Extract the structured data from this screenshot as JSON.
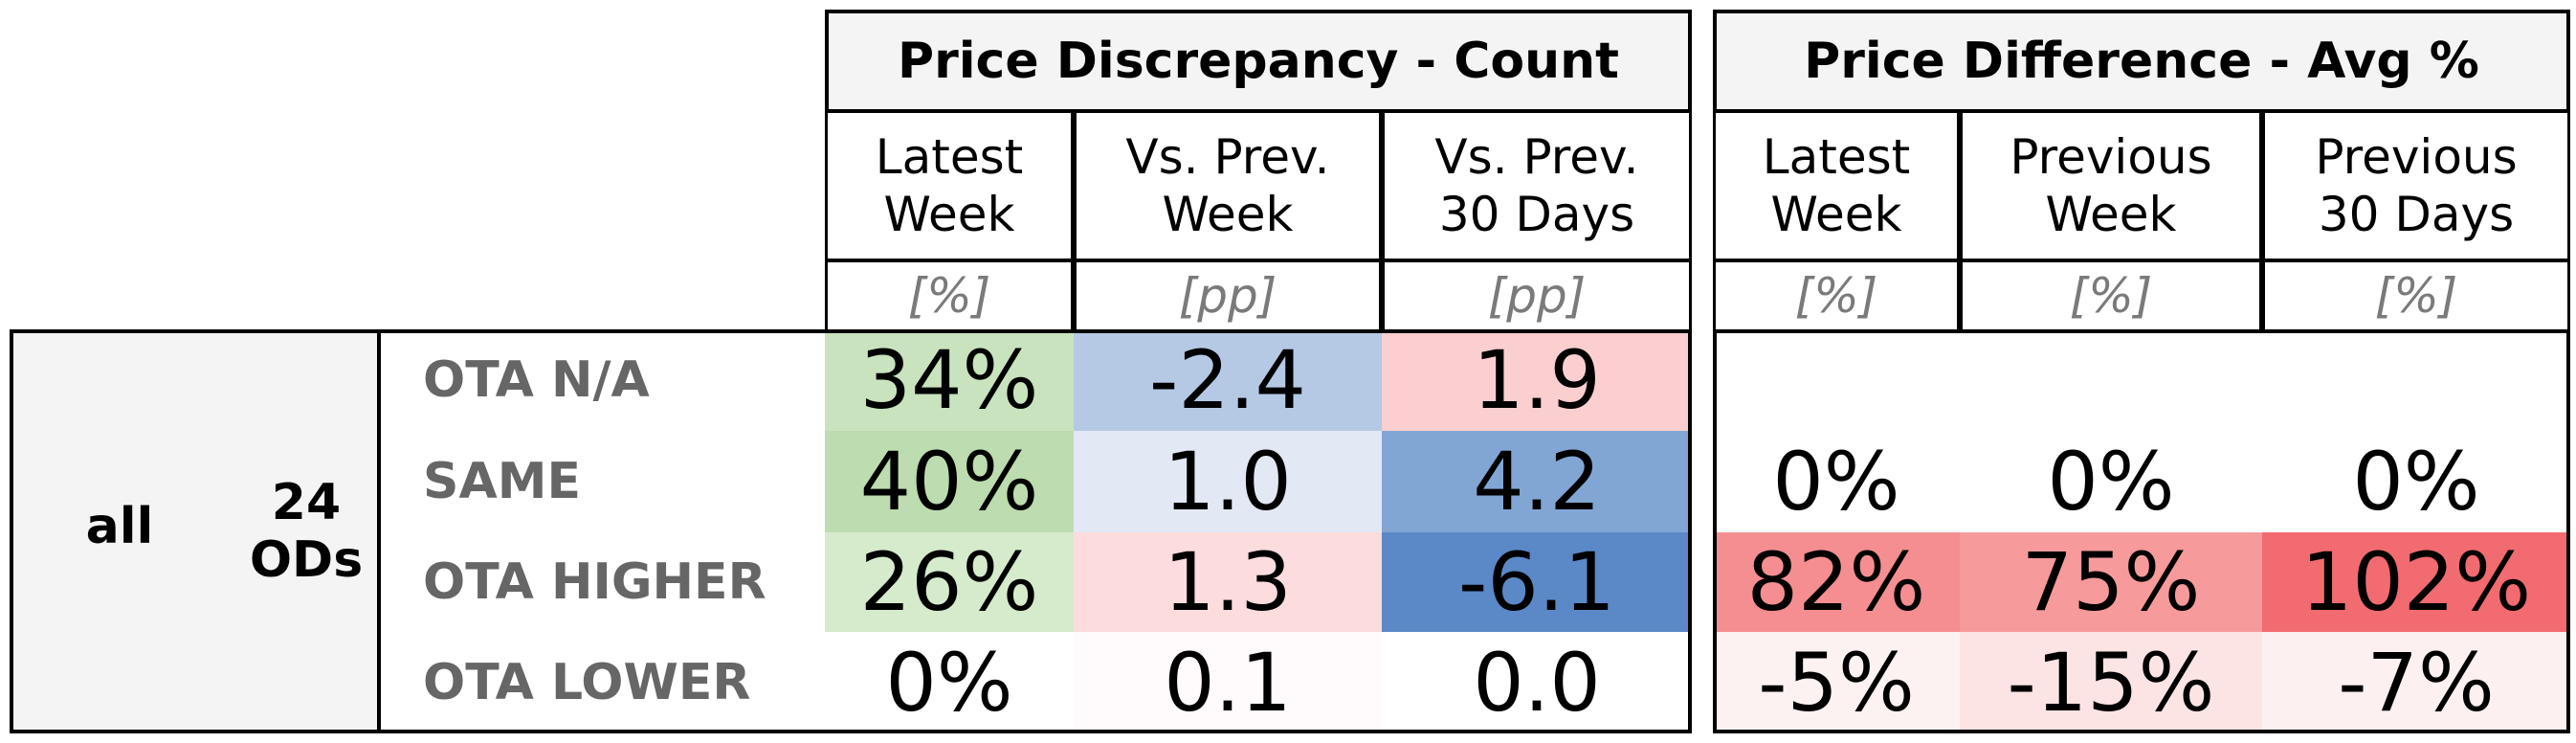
{
  "groups": {
    "count": {
      "title": "Price Discrepancy - Count",
      "columns": [
        {
          "label": "Latest\nWeek",
          "unit": "[%]"
        },
        {
          "label": "Vs. Prev.\nWeek",
          "unit": "[pp]"
        },
        {
          "label": "Vs. Prev.\n30 Days",
          "unit": "[pp]"
        }
      ]
    },
    "avg": {
      "title": "Price Difference - Avg %",
      "columns": [
        {
          "label": "Latest\nWeek",
          "unit": "[%]"
        },
        {
          "label": "Previous\nWeek",
          "unit": "[%]"
        },
        {
          "label": "Previous\n30 Days",
          "unit": "[%]"
        }
      ]
    }
  },
  "scope": {
    "label": "all",
    "ods": "24\nODs"
  },
  "rows": [
    {
      "label": "OTA N/A",
      "count": [
        {
          "v": "34%",
          "c": "#c8e3bd"
        },
        {
          "v": "-2.4",
          "c": "#b5c9e5"
        },
        {
          "v": "1.9",
          "c": "#fbcfd0"
        }
      ],
      "avg": [
        {
          "v": "",
          "c": "#ffffff"
        },
        {
          "v": "",
          "c": "#ffffff"
        },
        {
          "v": "",
          "c": "#ffffff"
        }
      ]
    },
    {
      "label": "SAME",
      "count": [
        {
          "v": "40%",
          "c": "#bddcaf"
        },
        {
          "v": "1.0",
          "c": "#e2e8f4"
        },
        {
          "v": "4.2",
          "c": "#81a6d4"
        }
      ],
      "avg": [
        {
          "v": "0%",
          "c": "#ffffff"
        },
        {
          "v": "0%",
          "c": "#ffffff"
        },
        {
          "v": "0%",
          "c": "#ffffff"
        }
      ]
    },
    {
      "label": "OTA HIGHER",
      "count": [
        {
          "v": "26%",
          "c": "#d5ebcc"
        },
        {
          "v": "1.3",
          "c": "#fcdcdd"
        },
        {
          "v": "-6.1",
          "c": "#5b88c7"
        }
      ],
      "avg": [
        {
          "v": "82%",
          "c": "#f58e91"
        },
        {
          "v": "75%",
          "c": "#f69a9c"
        },
        {
          "v": "102%",
          "c": "#f26b70"
        }
      ]
    },
    {
      "label": "OTA LOWER",
      "count": [
        {
          "v": "0%",
          "c": "#ffffff"
        },
        {
          "v": "0.1",
          "c": "#fffafb"
        },
        {
          "v": "0.0",
          "c": "#ffffff"
        }
      ],
      "avg": [
        {
          "v": "-5%",
          "c": "#fdf2f2"
        },
        {
          "v": "-15%",
          "c": "#fce4e4"
        },
        {
          "v": "-7%",
          "c": "#fdf0f0"
        }
      ]
    }
  ]
}
